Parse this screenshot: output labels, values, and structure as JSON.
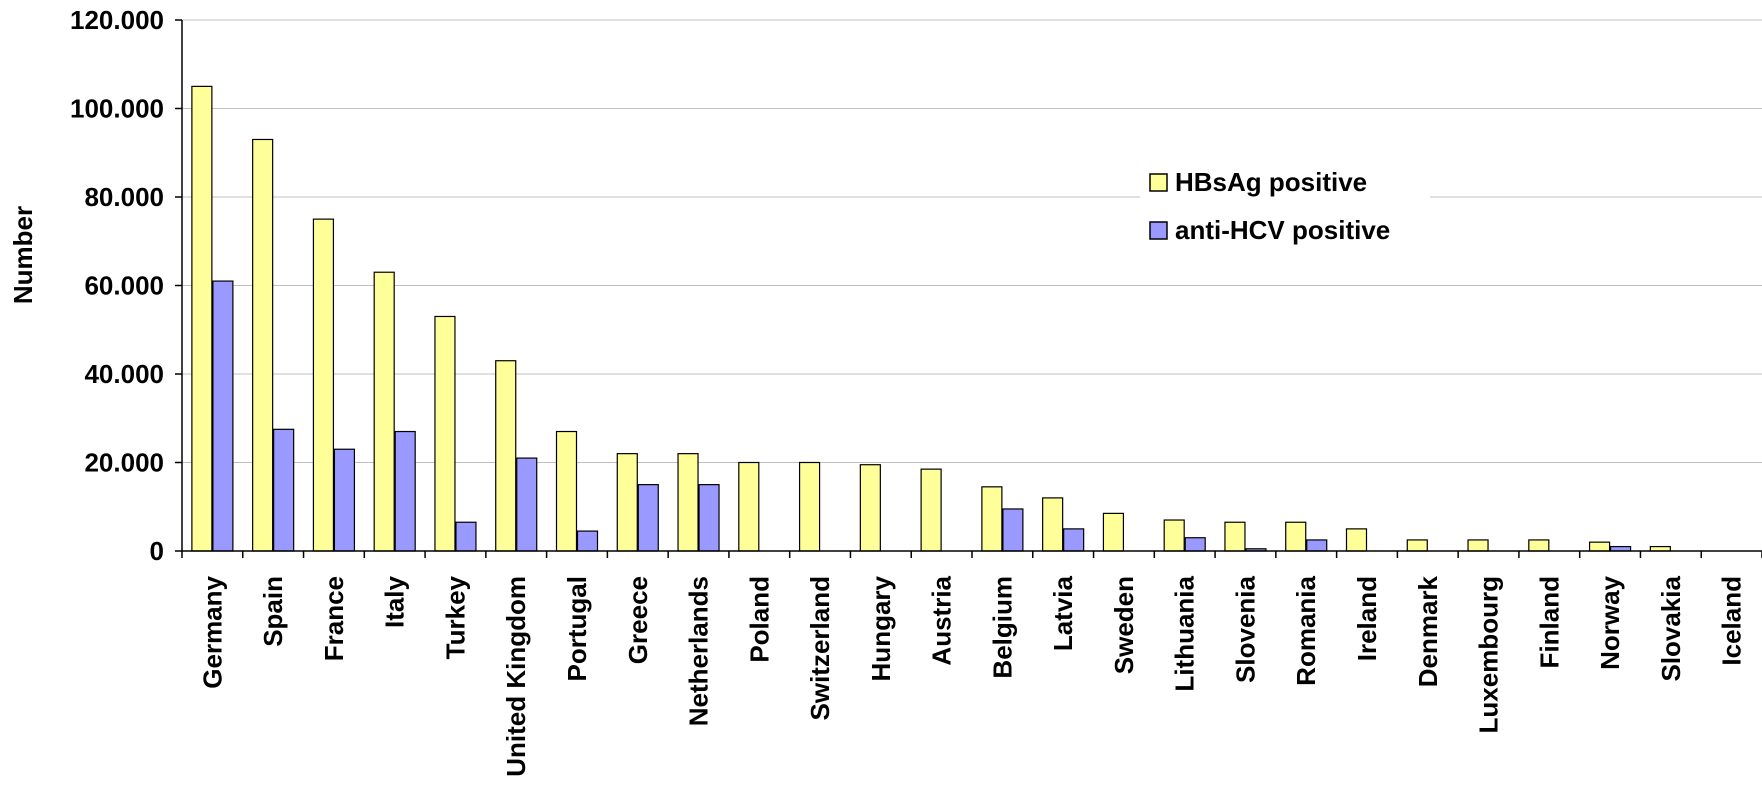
{
  "chart_data": {
    "type": "bar",
    "title": "",
    "xlabel": "",
    "ylabel": "Number",
    "ylim": [
      0,
      120000
    ],
    "yticks": [
      0,
      20000,
      40000,
      60000,
      80000,
      100000,
      120000
    ],
    "ytick_labels": [
      "0",
      "20.000",
      "40.000",
      "60.000",
      "80.000",
      "100.000",
      "120.000"
    ],
    "grid": true,
    "legend_position": "top-right",
    "categories": [
      "Germany",
      "Spain",
      "France",
      "Italy",
      "Turkey",
      "United Kingdom",
      "Portugal",
      "Greece",
      "Netherlands",
      "Poland",
      "Switzerland",
      "Hungary",
      "Austria",
      "Belgium",
      "Latvia",
      "Sweden",
      "Lithuania",
      "Slovenia",
      "Romania",
      "Ireland",
      "Denmark",
      "Luxembourg",
      "Finland",
      "Norway",
      "Slovakia",
      "Iceland"
    ],
    "series": [
      {
        "name": "HBsAg positive",
        "color": "#ffff99",
        "values": [
          105000,
          93000,
          75000,
          63000,
          53000,
          43000,
          27000,
          22000,
          22000,
          20000,
          20000,
          19500,
          18500,
          14500,
          12000,
          8500,
          7000,
          6500,
          6500,
          5000,
          2500,
          2500,
          2500,
          2000,
          1000,
          0
        ]
      },
      {
        "name": "anti-HCV positive",
        "color": "#9999ff",
        "values": [
          61000,
          27500,
          23000,
          27000,
          6500,
          21000,
          4500,
          15000,
          15000,
          0,
          0,
          0,
          0,
          9500,
          5000,
          0,
          3000,
          500,
          2500,
          0,
          0,
          0,
          0,
          1000,
          0,
          0
        ]
      }
    ]
  }
}
